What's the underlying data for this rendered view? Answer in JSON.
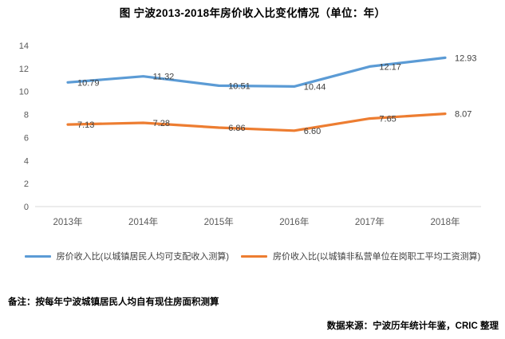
{
  "page": {
    "title": "图 宁波2013-2018年房价收入比变化情况（单位：年）",
    "note": "备注：按每年宁波城镇居民人均自有现住房面积测算",
    "source": "数据来源：宁波历年统计年鉴，CRIC 整理"
  },
  "chart_data": {
    "type": "line",
    "title": "图 宁波2013-2018年房价收入比变化情况（单位：年）",
    "categories": [
      "2013年",
      "2014年",
      "2015年",
      "2016年",
      "2017年",
      "2018年"
    ],
    "series": [
      {
        "name": "房价收入比(以城镇居民人均可支配收入测算)",
        "color": "#5B9BD5",
        "values": [
          10.79,
          11.32,
          10.51,
          10.44,
          12.17,
          12.93
        ],
        "labels": [
          "10.79",
          "11.32",
          "10.51",
          "10.44",
          "12.17",
          "12.93"
        ]
      },
      {
        "name": "房价收入比(以城镇非私营单位在岗职工平均工资测算)",
        "color": "#ED7D31",
        "values": [
          7.13,
          7.28,
          6.86,
          6.6,
          7.65,
          8.07
        ],
        "labels": [
          "7.13",
          "7.28",
          "6.86",
          "6.60",
          "7.65",
          "8.07"
        ]
      }
    ],
    "xlabel": "",
    "ylabel": "",
    "ylim": [
      0,
      14
    ],
    "ytick_step": 2,
    "yticks": [
      0,
      2,
      4,
      6,
      8,
      10,
      12,
      14
    ],
    "grid": false,
    "legend_position": "bottom",
    "axis_color": "#D9D9D9",
    "tick_label_color": "#595959",
    "data_label_color": "#404040"
  }
}
